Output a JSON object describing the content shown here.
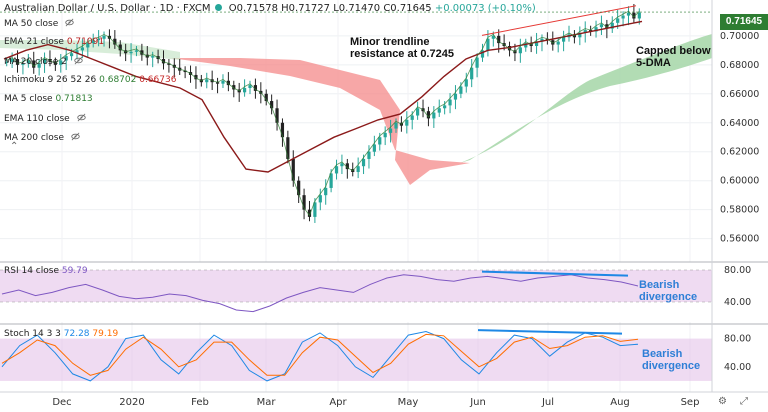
{
  "header": {
    "symbol": "Australian Dollar / U.S. Dollar · 1D · FXCM",
    "o": "O0.71578",
    "h": "H0.71727",
    "l": "L0.71470",
    "c": "C0.71645",
    "chg": "+0.00073 (+0.10%)"
  },
  "legend": [
    {
      "label": "MA 50 close",
      "value": "",
      "color": "#888"
    },
    {
      "label": "EMA 21 close",
      "value": "0.71091",
      "color": "#b71c1c"
    },
    {
      "label": "MA 20 close 2",
      "value": "",
      "color": "#888"
    },
    {
      "label": "Ichimoku 9 26 52 26",
      "value": "0.68702",
      "value2": "0.66736",
      "color": "#2e7d32",
      "color2": "#c62828"
    },
    {
      "label": "MA 5 close",
      "value": "0.71813",
      "color": "#2e7d32"
    },
    {
      "label": "EMA 110 close",
      "value": "",
      "color": "#888"
    },
    {
      "label": "MA 200 close",
      "value": "",
      "color": "#888"
    }
  ],
  "annotations": {
    "trendline": "Minor trendline\nresistance at 0.7245",
    "capped": "Capped below\n5-DMA",
    "rsi_div": "Bearish\ndivergence",
    "stoch_div": "Bearish\ndivergence"
  },
  "price_tag": "0.71645",
  "rsi_legend": {
    "label": "RSI 14 close",
    "value": "59.79"
  },
  "stoch_legend": {
    "label": "Stoch 14 3 3",
    "k": "72.28",
    "d": "79.19"
  },
  "chart_data": {
    "type": "candlestick",
    "y_ticks": [
      "0.70000",
      "0.68000",
      "0.66000",
      "0.64000",
      "0.62000",
      "0.60000",
      "0.58000",
      "0.56000"
    ],
    "ylim": [
      0.548,
      0.722
    ],
    "x_ticks": [
      "Dec",
      "2020",
      "Feb",
      "Mar",
      "Apr",
      "May",
      "Jun",
      "Jul",
      "Aug",
      "Sep"
    ],
    "rsi_ticks": [
      "80.00",
      "40.00"
    ],
    "stoch_ticks": [
      "80.00",
      "40.00"
    ],
    "close_path": [
      0.682,
      0.684,
      0.68,
      0.681,
      0.683,
      0.678,
      0.681,
      0.684,
      0.682,
      0.68,
      0.683,
      0.686,
      0.688,
      0.69,
      0.692,
      0.695,
      0.697,
      0.698,
      0.7,
      0.698,
      0.694,
      0.69,
      0.688,
      0.689,
      0.69,
      0.687,
      0.685,
      0.686,
      0.684,
      0.681,
      0.68,
      0.678,
      0.676,
      0.675,
      0.673,
      0.67,
      0.668,
      0.67,
      0.668,
      0.667,
      0.669,
      0.666,
      0.663,
      0.661,
      0.664,
      0.666,
      0.662,
      0.66,
      0.655,
      0.65,
      0.64,
      0.63,
      0.615,
      0.6,
      0.59,
      0.58,
      0.575,
      0.585,
      0.59,
      0.595,
      0.605,
      0.61,
      0.612,
      0.608,
      0.606,
      0.61,
      0.615,
      0.62,
      0.625,
      0.63,
      0.633,
      0.636,
      0.64,
      0.638,
      0.642,
      0.645,
      0.65,
      0.648,
      0.643,
      0.647,
      0.65,
      0.652,
      0.656,
      0.66,
      0.665,
      0.67,
      0.678,
      0.685,
      0.69,
      0.698,
      0.7,
      0.695,
      0.693,
      0.69,
      0.688,
      0.692,
      0.695,
      0.693,
      0.696,
      0.698,
      0.697,
      0.694,
      0.696,
      0.699,
      0.701,
      0.699,
      0.702,
      0.704,
      0.703,
      0.706,
      0.708,
      0.705,
      0.709,
      0.712,
      0.714,
      0.716,
      0.712,
      0.716
    ],
    "upper_trendline": [
      [
        0.7,
        0
      ],
      [
        0.72,
        1
      ]
    ],
    "ema21": [
      0.684,
      0.69,
      0.694,
      0.69,
      0.684,
      0.678,
      0.672,
      0.668,
      0.664,
      0.656,
      0.63,
      0.608,
      0.606,
      0.614,
      0.622,
      0.63,
      0.636,
      0.642,
      0.646,
      0.658,
      0.672,
      0.684,
      0.69,
      0.692,
      0.695,
      0.698,
      0.701,
      0.704,
      0.707,
      0.71
    ],
    "rsi": [
      50,
      55,
      48,
      52,
      58,
      62,
      55,
      47,
      44,
      46,
      50,
      48,
      42,
      38,
      30,
      28,
      35,
      45,
      52,
      58,
      55,
      52,
      62,
      70,
      74,
      72,
      68,
      66,
      70,
      72,
      69,
      66,
      70,
      72,
      74,
      70,
      68,
      65,
      60
    ],
    "stoch_k": [
      40,
      70,
      85,
      60,
      30,
      20,
      40,
      80,
      85,
      50,
      30,
      60,
      85,
      70,
      35,
      20,
      30,
      75,
      88,
      70,
      40,
      25,
      55,
      85,
      90,
      80,
      50,
      30,
      60,
      85,
      80,
      55,
      75,
      88,
      82,
      70,
      72
    ],
    "stoch_d": [
      45,
      60,
      78,
      70,
      45,
      28,
      35,
      65,
      82,
      65,
      40,
      50,
      75,
      75,
      50,
      28,
      28,
      60,
      82,
      78,
      55,
      32,
      45,
      72,
      86,
      84,
      62,
      40,
      52,
      75,
      82,
      66,
      70,
      82,
      84,
      76,
      79
    ]
  }
}
